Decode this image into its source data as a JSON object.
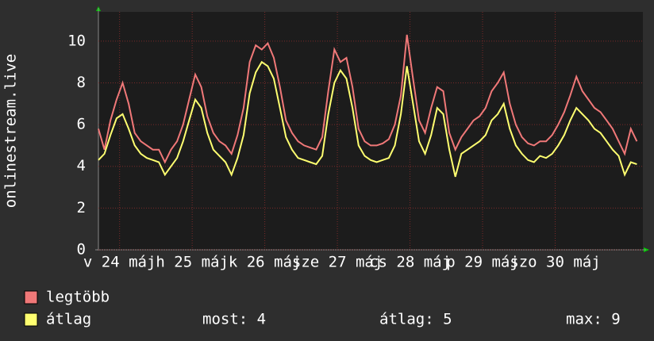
{
  "chart_data": {
    "type": "line",
    "ylabel": "onlinestream.live",
    "xlim": [
      0,
      180
    ],
    "xticks": [
      {
        "value": 7,
        "label": "v 24 máj"
      },
      {
        "value": 31,
        "label": "h 25 máj"
      },
      {
        "value": 55,
        "label": "k 26 máj"
      },
      {
        "value": 79,
        "label": "sze 27 máj"
      },
      {
        "value": 103,
        "label": "cs 28 máj"
      },
      {
        "value": 127,
        "label": "p 29 máj"
      },
      {
        "value": 151,
        "label": "szo 30 máj"
      }
    ],
    "ylim": [
      0,
      11.4
    ],
    "yticks": [
      0,
      2,
      4,
      6,
      8,
      10
    ],
    "grid": true,
    "x": [
      0,
      2,
      4,
      6,
      8,
      10,
      12,
      14,
      16,
      18,
      20,
      22,
      24,
      26,
      28,
      30,
      32,
      34,
      36,
      38,
      40,
      42,
      44,
      46,
      48,
      50,
      52,
      54,
      56,
      58,
      60,
      62,
      64,
      66,
      68,
      70,
      72,
      74,
      76,
      78,
      80,
      82,
      84,
      86,
      88,
      90,
      92,
      94,
      96,
      98,
      100,
      102,
      104,
      106,
      108,
      110,
      112,
      114,
      116,
      118,
      120,
      122,
      124,
      126,
      128,
      130,
      132,
      134,
      136,
      138,
      140,
      142,
      144,
      146,
      148,
      150,
      152,
      154,
      156,
      158,
      160,
      162,
      164,
      166,
      168,
      170,
      172,
      174,
      176,
      178
    ],
    "series": [
      {
        "name": "legtöbb",
        "color": "#f07878",
        "values": [
          5.8,
          4.8,
          6.2,
          7.2,
          8.0,
          7.0,
          5.6,
          5.2,
          5.0,
          4.8,
          4.8,
          4.2,
          4.8,
          5.2,
          6.0,
          7.2,
          8.4,
          7.8,
          6.4,
          5.6,
          5.2,
          5.0,
          4.6,
          5.5,
          6.8,
          9.0,
          9.8,
          9.6,
          9.9,
          9.2,
          7.8,
          6.2,
          5.6,
          5.2,
          5.0,
          4.9,
          4.8,
          5.4,
          7.6,
          9.6,
          9.0,
          9.2,
          7.8,
          5.8,
          5.2,
          5.0,
          5.0,
          5.1,
          5.3,
          6.0,
          7.4,
          10.3,
          8.2,
          6.2,
          5.6,
          6.8,
          7.8,
          7.6,
          5.6,
          4.8,
          5.4,
          5.8,
          6.2,
          6.4,
          6.8,
          7.6,
          8.0,
          8.5,
          7.0,
          6.0,
          5.4,
          5.1,
          5.0,
          5.2,
          5.2,
          5.5,
          6.0,
          6.6,
          7.4,
          8.3,
          7.6,
          7.2,
          6.8,
          6.6,
          6.2,
          5.8,
          5.2,
          4.6,
          5.8,
          5.2
        ]
      },
      {
        "name": "átlag",
        "color": "#ffff70",
        "values": [
          4.3,
          4.6,
          5.5,
          6.3,
          6.5,
          5.8,
          5.0,
          4.6,
          4.4,
          4.3,
          4.2,
          3.6,
          4.0,
          4.4,
          5.2,
          6.2,
          7.2,
          6.8,
          5.6,
          4.8,
          4.5,
          4.2,
          3.6,
          4.4,
          5.5,
          7.5,
          8.5,
          9.0,
          8.8,
          8.2,
          6.8,
          5.4,
          4.8,
          4.4,
          4.3,
          4.2,
          4.1,
          4.5,
          6.5,
          8.0,
          8.6,
          8.2,
          6.8,
          5.0,
          4.5,
          4.3,
          4.2,
          4.3,
          4.4,
          5.0,
          6.5,
          8.8,
          7.0,
          5.2,
          4.6,
          5.5,
          6.8,
          6.5,
          4.8,
          3.5,
          4.6,
          4.8,
          5.0,
          5.2,
          5.5,
          6.2,
          6.5,
          7.0,
          5.8,
          5.0,
          4.6,
          4.3,
          4.2,
          4.5,
          4.4,
          4.6,
          5.0,
          5.5,
          6.2,
          6.8,
          6.5,
          6.2,
          5.8,
          5.6,
          5.2,
          4.8,
          4.5,
          3.6,
          4.2,
          4.1
        ]
      }
    ],
    "stats": [
      "most: 4",
      "átlag: 5",
      "max: 9"
    ]
  }
}
